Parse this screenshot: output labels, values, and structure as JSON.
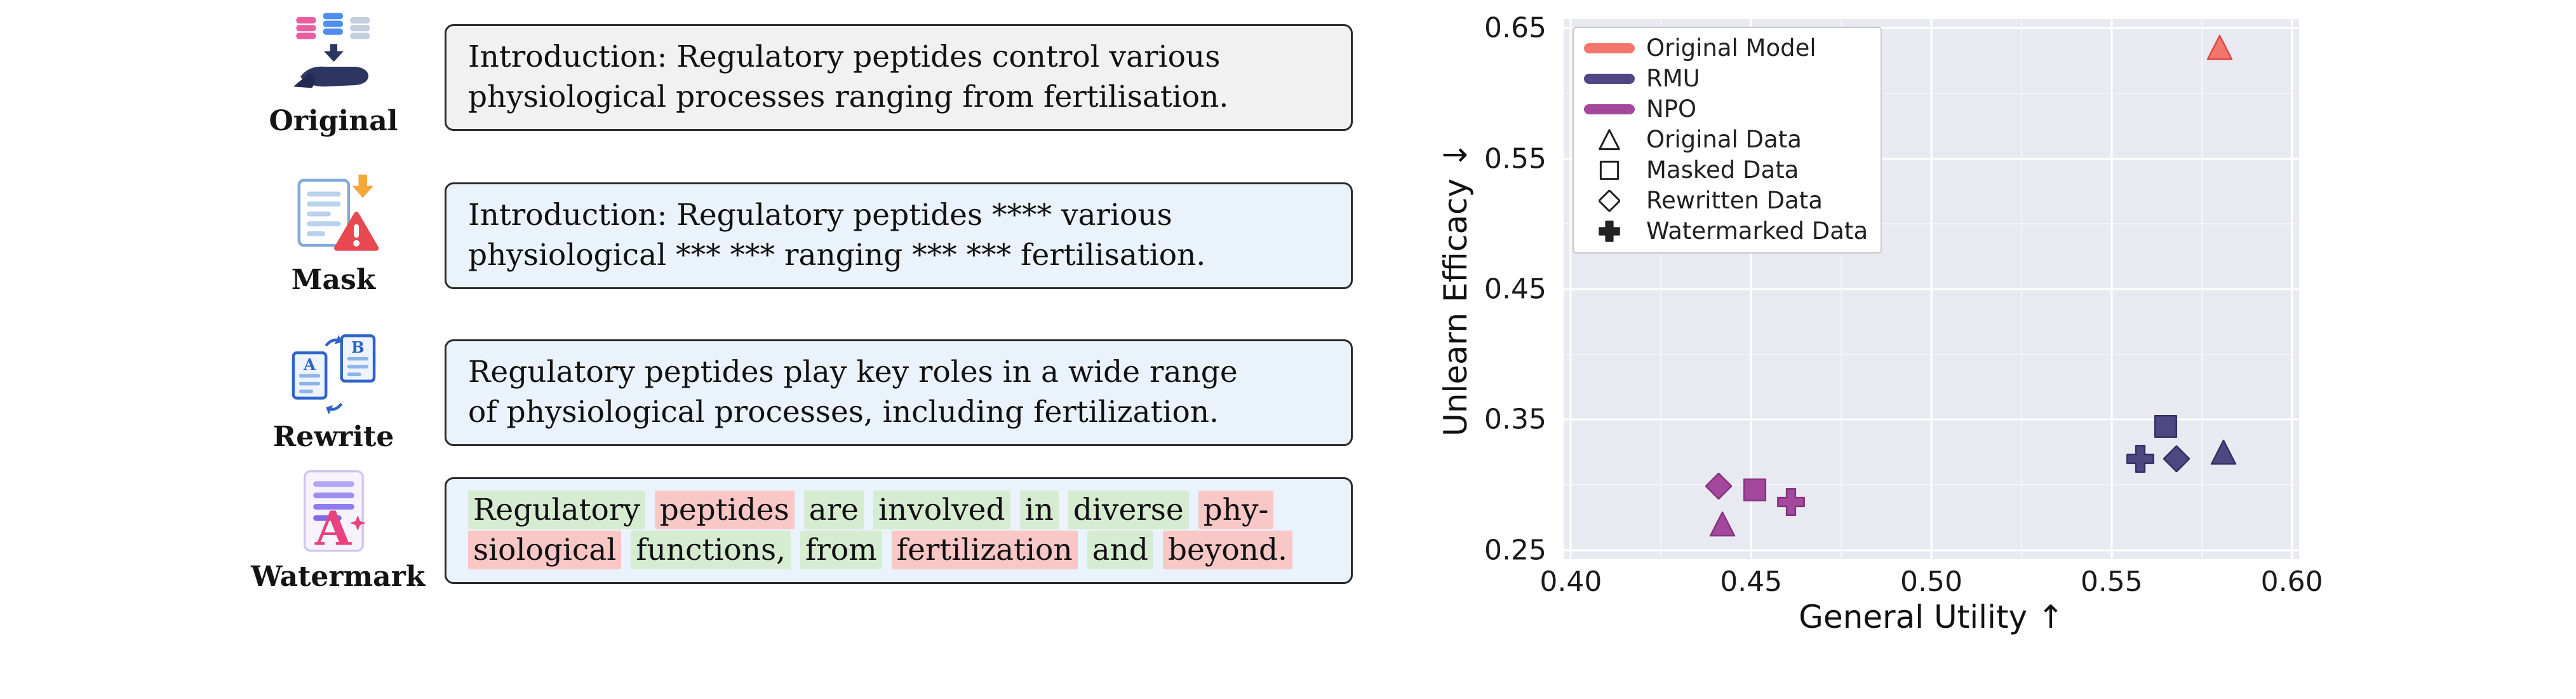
{
  "page": {
    "background": "#ffffff"
  },
  "highlight_colors": {
    "green": "#d6ecd0",
    "red": "#f9c7c6"
  },
  "rows": [
    {
      "label": "Original",
      "box_bg": "#f1f1f1",
      "lines": [
        "Introduction: Regulatory peptides control various",
        "physiological processes ranging from fertilisation."
      ]
    },
    {
      "label": "Mask",
      "box_bg": "#eaf2fb",
      "lines": [
        "Introduction: Regulatory peptides **** various",
        "physiological *** *** ranging *** *** fertilisation."
      ]
    },
    {
      "label": "Rewrite",
      "box_bg": "#eaf2fb",
      "lines": [
        "Regulatory peptides play key roles in a wide range",
        "of physiological processes, including fertilization."
      ]
    },
    {
      "label": "Watermark",
      "box_bg": "#eaf2fb",
      "token_lines": [
        [
          {
            "t": "Regulatory",
            "h": "green"
          },
          {
            "t": "peptides",
            "h": "red"
          },
          {
            "t": "are",
            "h": "green"
          },
          {
            "t": "involved",
            "h": "green"
          },
          {
            "t": "in",
            "h": "green"
          },
          {
            "t": "diverse",
            "h": "green"
          },
          {
            "t": "phy-",
            "h": "red"
          }
        ],
        [
          {
            "t": "siological",
            "h": "red"
          },
          {
            "t": "functions,",
            "h": "green"
          },
          {
            "t": "from",
            "h": "green"
          },
          {
            "t": "fertilization",
            "h": "red"
          },
          {
            "t": "and",
            "h": "green"
          },
          {
            "t": "beyond.",
            "h": "red"
          }
        ]
      ]
    }
  ],
  "chart_data": {
    "type": "scatter",
    "title": "",
    "xlabel": "General Utility ↑",
    "ylabel": "Unlearn Efficacy ↓",
    "xlim": [
      0.398,
      0.602
    ],
    "ylim": [
      0.243,
      0.657
    ],
    "xticks": [
      0.4,
      0.45,
      0.5,
      0.55,
      0.6
    ],
    "xtick_labels": [
      "0.40",
      "0.45",
      "0.50",
      "0.55",
      "0.60"
    ],
    "yticks": [
      0.25,
      0.35,
      0.45,
      0.55,
      0.65
    ],
    "ytick_labels": [
      "0.25",
      "0.35",
      "0.45",
      "0.55",
      "0.65"
    ],
    "xticks_minor": [
      0.425,
      0.475,
      0.525,
      0.575
    ],
    "yticks_minor": [
      0.3,
      0.4,
      0.5,
      0.6
    ],
    "grid": true,
    "plot_bg": "#e9e9f2",
    "legend_position": "upper left",
    "models": [
      {
        "name": "Original Model",
        "color": "#f4756b",
        "edge": "#d84a3f"
      },
      {
        "name": "RMU",
        "color": "#4e4782",
        "edge": "#353061"
      },
      {
        "name": "NPO",
        "color": "#a6479e",
        "edge": "#83357d"
      }
    ],
    "series": [
      {
        "model": "Original Model",
        "data_type": "Original Data",
        "marker": "triangle",
        "x": 0.58,
        "y": 0.635
      },
      {
        "model": "RMU",
        "data_type": "Masked Data",
        "marker": "square",
        "x": 0.565,
        "y": 0.345
      },
      {
        "model": "RMU",
        "data_type": "Watermarked Data",
        "marker": "plus",
        "x": 0.558,
        "y": 0.32
      },
      {
        "model": "RMU",
        "data_type": "Rewritten Data",
        "marker": "diamond",
        "x": 0.568,
        "y": 0.32
      },
      {
        "model": "RMU",
        "data_type": "Original Data",
        "marker": "triangle",
        "x": 0.581,
        "y": 0.325
      },
      {
        "model": "NPO",
        "data_type": "Rewritten Data",
        "marker": "diamond",
        "x": 0.441,
        "y": 0.299
      },
      {
        "model": "NPO",
        "data_type": "Masked Data",
        "marker": "square",
        "x": 0.451,
        "y": 0.296
      },
      {
        "model": "NPO",
        "data_type": "Watermarked Data",
        "marker": "plus",
        "x": 0.461,
        "y": 0.287
      },
      {
        "model": "NPO",
        "data_type": "Original Data",
        "marker": "triangle",
        "x": 0.442,
        "y": 0.27
      }
    ],
    "legend": [
      {
        "kind": "line",
        "label": "Original Model",
        "color": "#f4756b"
      },
      {
        "kind": "line",
        "label": "RMU",
        "color": "#4e4782"
      },
      {
        "kind": "line",
        "label": "NPO",
        "color": "#a6479e"
      },
      {
        "kind": "marker",
        "label": "Original Data",
        "marker": "triangle"
      },
      {
        "kind": "marker",
        "label": "Masked Data",
        "marker": "square"
      },
      {
        "kind": "marker",
        "label": "Rewritten Data",
        "marker": "diamond"
      },
      {
        "kind": "marker",
        "label": "Watermarked Data",
        "marker": "plus"
      }
    ]
  }
}
